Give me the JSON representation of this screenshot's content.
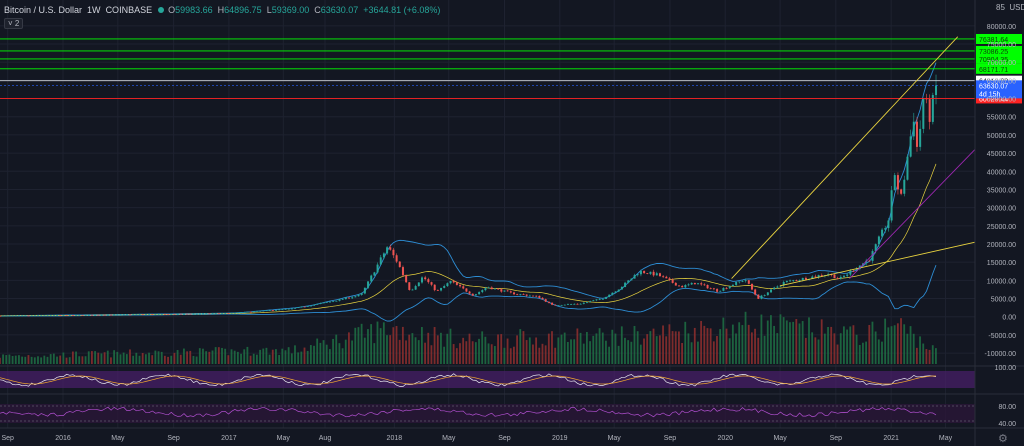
{
  "header": {
    "title": "Bitcoin / U.S. Dollar",
    "interval": "1W",
    "exchange": "COINBASE",
    "open_label": "O",
    "open": "59983.66",
    "high_label": "H",
    "high": "64896.75",
    "low_label": "L",
    "low": "59369.00",
    "close_label": "C",
    "close": "63630.07",
    "change": "+3644.81 (+6.08%)",
    "collapse_label": "˅ 2"
  },
  "price_axis": {
    "unit": "USD",
    "partial_top_tick": "85"
  },
  "colors": {
    "background": "#131722",
    "up": "#26a69a",
    "down": "#ef5350",
    "volume_up": "#1e6b42",
    "volume_down": "#8a2d2d",
    "green_level": "#00ff00",
    "red_level": "#ff2222",
    "bollinger": "#2d8dd4",
    "trendline": "#e8d33f",
    "pitchfork": "#c9a23a",
    "purple_line": "#9c27b0",
    "rsi_band": "#4a1f6b"
  },
  "chart_data": [
    {
      "type": "candlestick",
      "pane": "price",
      "symbol": "BTCUSD",
      "timeframe": "1W",
      "y_axis": {
        "ticks": [
          -10000,
          -5000,
          0,
          5000,
          10000,
          15000,
          20000,
          25000,
          30000,
          35000,
          40000,
          45000,
          50000,
          55000,
          60000,
          65000,
          70000,
          75000,
          80000
        ],
        "tick_labels": [
          "-10000.00",
          "-5000.00",
          "0.00",
          "5000.00",
          "10000.00",
          "15000.00",
          "20000.00",
          "25000.00",
          "30000.00",
          "35000.00",
          "40000.00",
          "45000.00",
          "50000.00",
          "55000.00",
          "60000.00",
          "65000.00",
          "70000.00",
          "75000.00",
          "80000.00"
        ],
        "range": [
          -13000,
          86000
        ]
      },
      "x_axis": {
        "ticks": [
          "2015-09",
          "2016-01",
          "2016-05",
          "2016-09",
          "2017-01",
          "2017-05",
          "2017-08",
          "2018-01",
          "2018-05",
          "2018-09",
          "2019-01",
          "2019-05",
          "2019-09",
          "2020-01",
          "2020-05",
          "2020-09",
          "2021-01",
          "2021-05"
        ],
        "tick_labels": [
          "Sep",
          "2016",
          "May",
          "Sep",
          "2017",
          "May",
          "Aug",
          "2018",
          "May",
          "Sep",
          "2019",
          "May",
          "Sep",
          "2020",
          "May",
          "Sep",
          "2021",
          "May"
        ],
        "range": [
          "2015-08-15",
          "2021-07-05"
        ]
      },
      "price_path": [
        [
          "2015-08-15",
          250
        ],
        [
          "2016-06-15",
          650
        ],
        [
          "2016-12-31",
          960
        ],
        [
          "2017-05-20",
          2200
        ],
        [
          "2017-08-15",
          4200
        ],
        [
          "2017-10-20",
          6000
        ],
        [
          "2017-12-17",
          19300
        ],
        [
          "2018-01-08",
          15000
        ],
        [
          "2018-02-05",
          7000
        ],
        [
          "2018-03-05",
          11000
        ],
        [
          "2018-04-05",
          6900
        ],
        [
          "2018-05-05",
          9700
        ],
        [
          "2018-06-25",
          5900
        ],
        [
          "2018-07-25",
          8200
        ],
        [
          "2018-09-15",
          6500
        ],
        [
          "2018-11-15",
          5500
        ],
        [
          "2018-12-15",
          3200
        ],
        [
          "2019-02-15",
          3600
        ],
        [
          "2019-04-05",
          5000
        ],
        [
          "2019-05-15",
          8000
        ],
        [
          "2019-06-26",
          12500
        ],
        [
          "2019-08-05",
          11500
        ],
        [
          "2019-09-25",
          8200
        ],
        [
          "2019-10-28",
          9300
        ],
        [
          "2019-12-15",
          7100
        ],
        [
          "2020-02-14",
          10300
        ],
        [
          "2020-03-13",
          5000
        ],
        [
          "2020-05-10",
          9500
        ],
        [
          "2020-08-15",
          11800
        ],
        [
          "2020-09-10",
          10400
        ],
        [
          "2020-11-15",
          16000
        ],
        [
          "2020-12-27",
          27000
        ],
        [
          "2021-01-08",
          40000
        ],
        [
          "2021-01-22",
          32000
        ],
        [
          "2021-02-21",
          56000
        ],
        [
          "2021-02-28",
          45000
        ],
        [
          "2021-03-13",
          60000
        ],
        [
          "2021-03-28",
          55000
        ],
        [
          "2021-04-11",
          63630
        ]
      ],
      "horizontal_levels": [
        {
          "value": 76381.64,
          "label": "76381.64",
          "color": "green"
        },
        {
          "value": 73086.25,
          "label": "73086.25",
          "color": "green"
        },
        {
          "value": 70904.35,
          "label": "70904.35",
          "color": "green"
        },
        {
          "value": 68171.71,
          "label": "68171.71",
          "color": "green"
        },
        {
          "value": 64912.88,
          "label": "64912.88",
          "color": "white"
        },
        {
          "value": 60029.44,
          "label": "60029.44",
          "color": "red"
        }
      ],
      "last_price": {
        "value": 63630.07,
        "label": "63630.07",
        "countdown": "4d 15h"
      },
      "trendlines": [
        {
          "from": [
            "2020-01-15",
            10500
          ],
          "to": [
            "2021-05-28",
            77000
          ],
          "color": "trendline"
        },
        {
          "from": [
            "2020-05-01",
            8500
          ],
          "to": [
            "2021-07-05",
            20500
          ],
          "color": "trendline"
        },
        {
          "from": [
            "2020-10-01",
            10500
          ],
          "to": [
            "2021-07-05",
            46000
          ],
          "color": "purple_line"
        }
      ],
      "annotation": "downward arrow near 2021-02"
    },
    {
      "type": "bar",
      "pane": "volume",
      "description_in_screen": "weekly volume histogram overlaid on price pane",
      "relative_volume_path": [
        [
          "2015-08-15",
          0.2
        ],
        [
          "2017-06-01",
          0.35
        ],
        [
          "2017-12-17",
          0.9
        ],
        [
          "2018-06-01",
          0.6
        ],
        [
          "2019-06-01",
          0.7
        ],
        [
          "2020-03-13",
          1.0
        ],
        [
          "2020-11-01",
          0.7
        ],
        [
          "2021-01-15",
          1.0
        ],
        [
          "2021-04-11",
          0.3
        ]
      ]
    },
    {
      "type": "line",
      "pane": "oscillator-1",
      "y_axis": {
        "ticks": [
          100
        ],
        "tick_labels": [
          "100.00"
        ]
      }
    },
    {
      "type": "line",
      "pane": "oscillator-2",
      "y_axis": {
        "ticks": [
          80,
          40
        ],
        "tick_labels": [
          "80.00",
          "40.00"
        ]
      }
    }
  ]
}
